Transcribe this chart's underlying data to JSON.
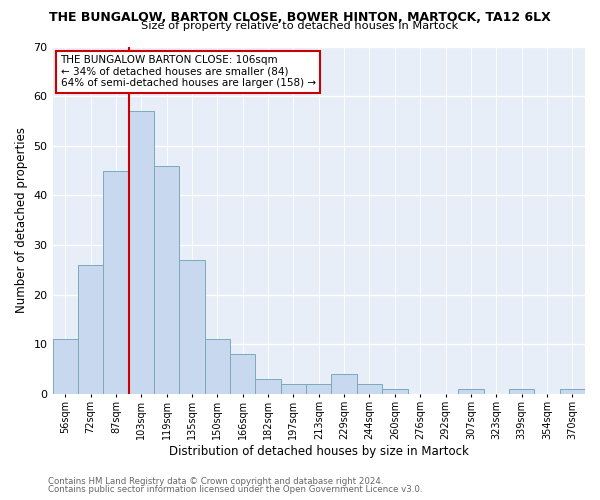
{
  "title": "THE BUNGALOW, BARTON CLOSE, BOWER HINTON, MARTOCK, TA12 6LX",
  "subtitle": "Size of property relative to detached houses in Martock",
  "xlabel": "Distribution of detached houses by size in Martock",
  "ylabel": "Number of detached properties",
  "bar_color": "#c8d8ee",
  "bar_edgecolor": "#7aaabb",
  "background_color": "#ffffff",
  "plot_bg_color": "#e8eef8",
  "bin_labels": [
    "56sqm",
    "72sqm",
    "87sqm",
    "103sqm",
    "119sqm",
    "135sqm",
    "150sqm",
    "166sqm",
    "182sqm",
    "197sqm",
    "213sqm",
    "229sqm",
    "244sqm",
    "260sqm",
    "276sqm",
    "292sqm",
    "307sqm",
    "323sqm",
    "339sqm",
    "354sqm",
    "370sqm"
  ],
  "bar_heights": [
    11,
    26,
    45,
    57,
    46,
    27,
    11,
    8,
    3,
    2,
    2,
    4,
    2,
    1,
    0,
    0,
    1,
    0,
    1,
    0,
    1
  ],
  "ylim": [
    0,
    70
  ],
  "yticks": [
    0,
    10,
    20,
    30,
    40,
    50,
    60,
    70
  ],
  "vline_color": "#cc0000",
  "annotation_title": "THE BUNGALOW BARTON CLOSE: 106sqm",
  "annotation_line1": "← 34% of detached houses are smaller (84)",
  "annotation_line2": "64% of semi-detached houses are larger (158) →",
  "annotation_box_color": "#ffffff",
  "annotation_box_edgecolor": "#cc0000",
  "footer1": "Contains HM Land Registry data © Crown copyright and database right 2024.",
  "footer2": "Contains public sector information licensed under the Open Government Licence v3.0."
}
